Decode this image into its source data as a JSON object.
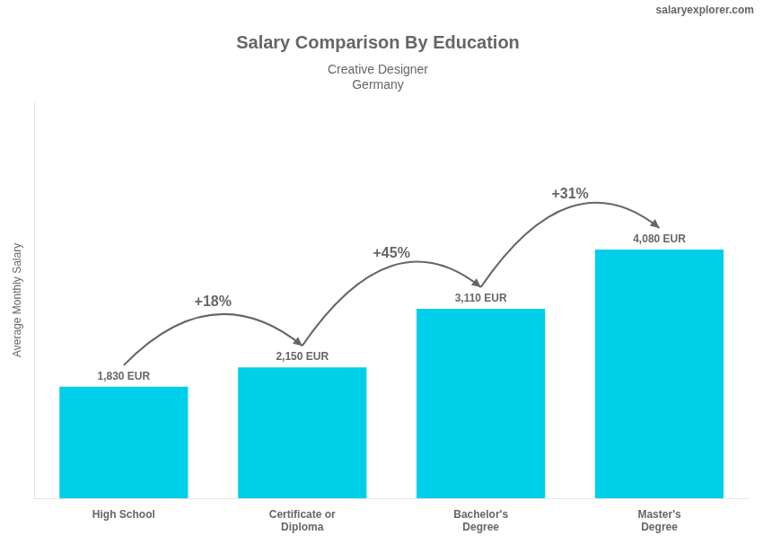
{
  "chart_data": {
    "type": "bar",
    "title": "Salary Comparison By Education",
    "subtitle": [
      "Creative Designer",
      "Germany"
    ],
    "y_label": "Average Monthly Salary",
    "categories": [
      "High School",
      "Certificate or\nDiploma",
      "Bachelor's\nDegree",
      "Master's\nDegree"
    ],
    "values": [
      1830,
      2150,
      3110,
      4080
    ],
    "value_labels": [
      "1,830 EUR",
      "2,150 EUR",
      "3,110 EUR",
      "4,080 EUR"
    ],
    "data_labels": true,
    "color": "#00cfea",
    "ylim": [
      0,
      6500
    ],
    "tick_labels": "x",
    "grid": false,
    "annotations": [
      {
        "text": "+18%",
        "from": 0,
        "to": 1
      },
      {
        "text": "+45%",
        "from": 1,
        "to": 2
      },
      {
        "text": "+31%",
        "from": 2,
        "to": 3
      },
      {
        "text": "salaryexplorer.com"
      }
    ]
  }
}
